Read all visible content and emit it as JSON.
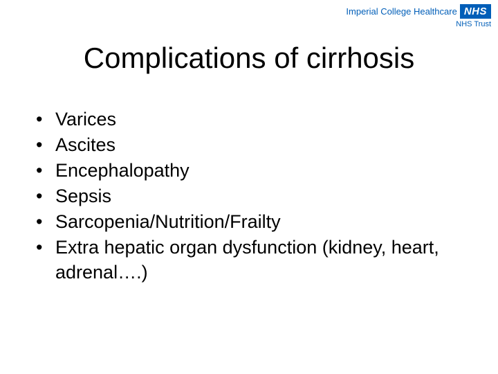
{
  "logo": {
    "org": "Imperial College Healthcare",
    "badge": "NHS",
    "sub": "NHS Trust"
  },
  "title": "Complications of cirrhosis",
  "bullets": [
    "Varices",
    "Ascites",
    "Encephalopathy",
    "Sepsis",
    "Sarcopenia/Nutrition/Frailty",
    "Extra hepatic organ dysfunction (kidney, heart, adrenal….)"
  ],
  "colors": {
    "background": "#ffffff",
    "text": "#000000",
    "nhs_blue": "#005eb8"
  },
  "typography": {
    "title_fontsize": 42,
    "body_fontsize": 27,
    "logo_fontsize": 13
  }
}
